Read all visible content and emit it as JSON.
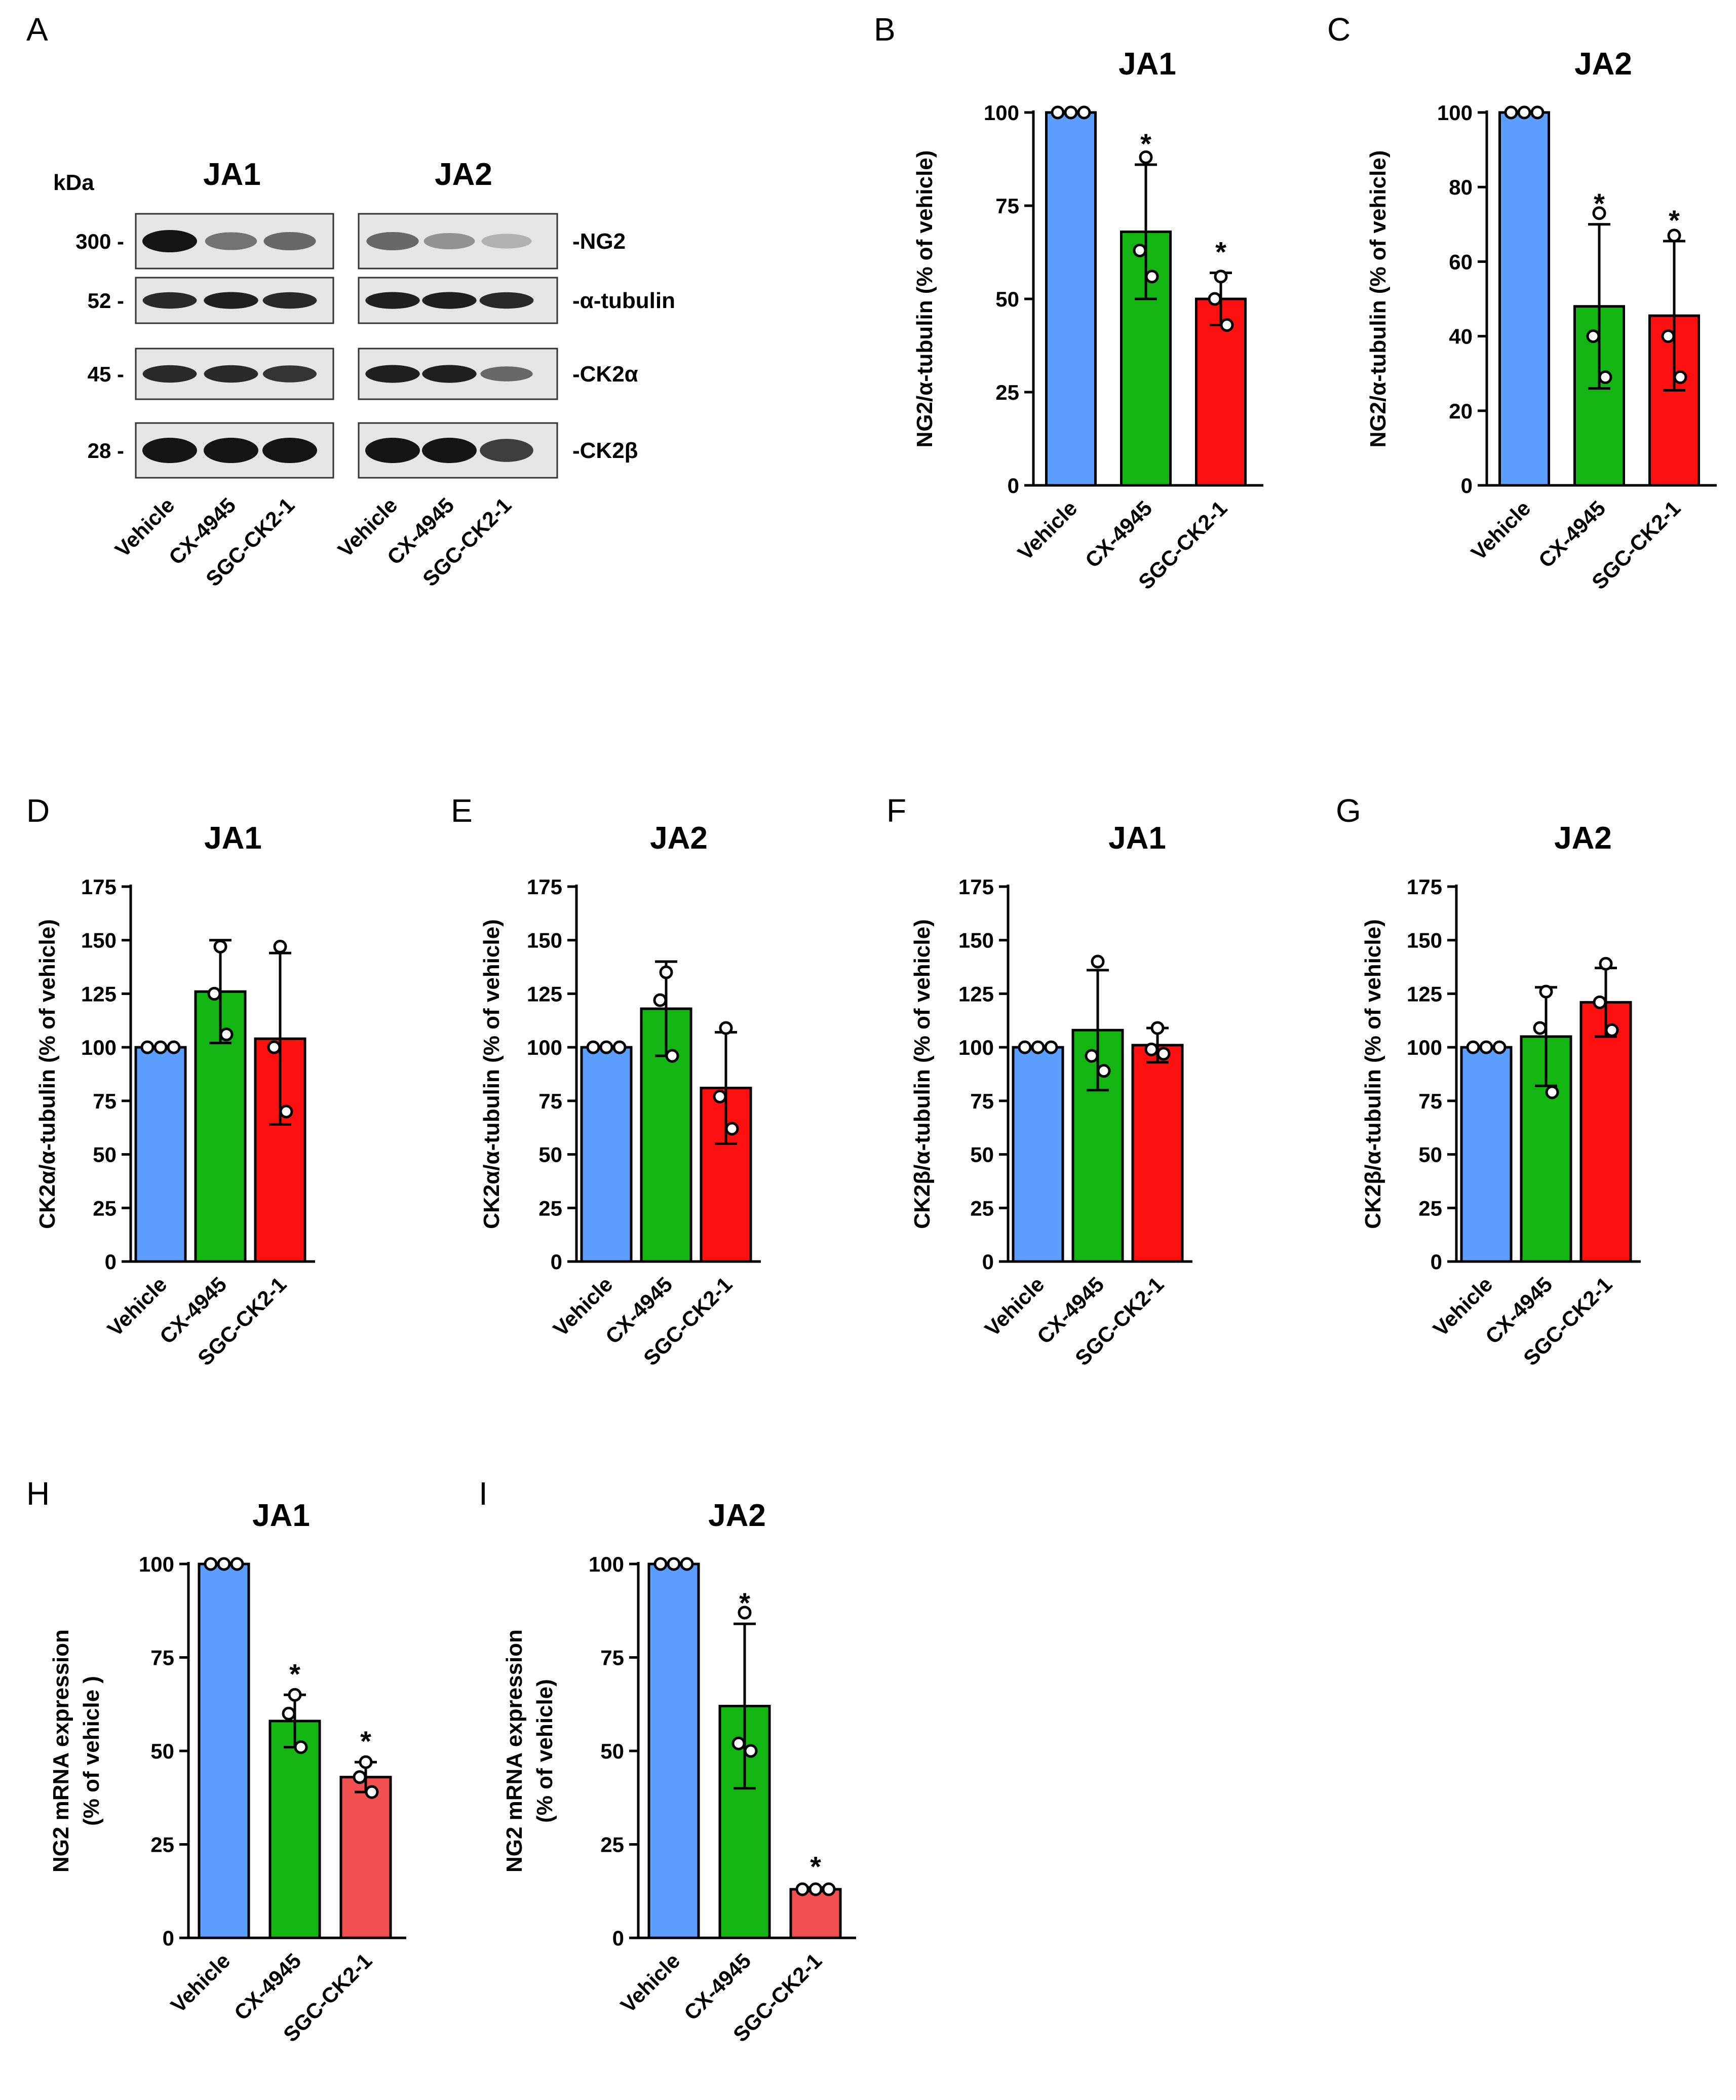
{
  "colors": {
    "vehicle": "#5b9eff",
    "cx4945": "#12b512",
    "sgc": "#ff1010",
    "sgc_light": "#f25050",
    "axis": "#000000"
  },
  "blot": {
    "panel_letter": "A",
    "kda_label": "kDa",
    "groups": [
      "JA1",
      "JA2"
    ],
    "markers": [
      "300 -",
      "52 -",
      "45 -",
      "28 -"
    ],
    "proteins": [
      "-NG2",
      "-α-tubulin",
      "-CK2α",
      "-CK2β"
    ],
    "lanes": [
      "Vehicle",
      "CX-4945",
      "SGC-CK2-1",
      "Vehicle",
      "CX-4945",
      "SGC-CK2-1"
    ]
  },
  "chart_data": [
    {
      "id": "B",
      "type": "bar",
      "panel_letter": "B",
      "title": "JA1",
      "ylabel": [
        "NG2/α-tubulin (% of vehicle)"
      ],
      "categories": [
        "Vehicle",
        "CX-4945",
        "SGC-CK2-1"
      ],
      "values": [
        100,
        68,
        50
      ],
      "errors": [
        0,
        18,
        7
      ],
      "points": [
        [
          100,
          100,
          100
        ],
        [
          88,
          63,
          56
        ],
        [
          56,
          50,
          43
        ]
      ],
      "significance": [
        "",
        "*",
        "*"
      ],
      "ylim": [
        0,
        100
      ],
      "yticks": [
        0,
        25,
        50,
        75,
        100
      ],
      "tick_labels": [
        "0",
        "25",
        "50",
        "75",
        "100"
      ]
    },
    {
      "id": "C",
      "type": "bar",
      "panel_letter": "C",
      "title": "JA2",
      "ylabel": [
        "NG2/α-tubulin (% of vehicle)"
      ],
      "categories": [
        "Vehicle",
        "CX-4945",
        "SGC-CK2-1"
      ],
      "values": [
        100,
        48,
        45.5
      ],
      "errors": [
        0,
        22,
        20
      ],
      "points": [
        [
          100,
          100,
          100
        ],
        [
          73,
          40,
          29
        ],
        [
          67,
          40,
          29
        ]
      ],
      "significance": [
        "",
        "*",
        "*"
      ],
      "ylim": [
        0,
        100
      ],
      "yticks": [
        0,
        20,
        40,
        60,
        80,
        100
      ],
      "tick_labels": [
        "0",
        "20",
        "40",
        "60",
        "80",
        "100"
      ]
    },
    {
      "id": "D",
      "type": "bar",
      "panel_letter": "D",
      "title": "JA1",
      "ylabel": [
        "CK2α/α-tubulin (% of vehicle)"
      ],
      "categories": [
        "Vehicle",
        "CX-4945",
        "SGC-CK2-1"
      ],
      "values": [
        100,
        126,
        104
      ],
      "errors": [
        0,
        24,
        40
      ],
      "points": [
        [
          100,
          100,
          100
        ],
        [
          147,
          125,
          106
        ],
        [
          147,
          100,
          70
        ]
      ],
      "significance": [
        "",
        "",
        ""
      ],
      "ylim": [
        0,
        175
      ],
      "yticks": [
        0,
        25,
        50,
        75,
        100,
        125,
        150,
        175
      ],
      "tick_labels": [
        "0",
        "25",
        "50",
        "75",
        "100",
        "125",
        "150",
        "175"
      ]
    },
    {
      "id": "E",
      "type": "bar",
      "panel_letter": "E",
      "title": "JA2",
      "ylabel": [
        "CK2α/α-tubulin (% of vehicle)"
      ],
      "categories": [
        "Vehicle",
        "CX-4945",
        "SGC-CK2-1"
      ],
      "values": [
        100,
        118,
        81
      ],
      "errors": [
        0,
        22,
        26
      ],
      "points": [
        [
          100,
          100,
          100
        ],
        [
          135,
          122,
          96
        ],
        [
          109,
          77,
          62
        ]
      ],
      "significance": [
        "",
        "",
        ""
      ],
      "ylim": [
        0,
        175
      ],
      "yticks": [
        0,
        25,
        50,
        75,
        100,
        125,
        150,
        175
      ],
      "tick_labels": [
        "0",
        "25",
        "50",
        "75",
        "100",
        "125",
        "150",
        "175"
      ]
    },
    {
      "id": "F",
      "type": "bar",
      "panel_letter": "F",
      "title": "JA1",
      "ylabel": [
        "CK2β/α-tubulin (% of vehicle)"
      ],
      "categories": [
        "Vehicle",
        "CX-4945",
        "SGC-CK2-1"
      ],
      "values": [
        100,
        108,
        101
      ],
      "errors": [
        0,
        28,
        8
      ],
      "points": [
        [
          100,
          100,
          100
        ],
        [
          140,
          96,
          89
        ],
        [
          109,
          99,
          97
        ]
      ],
      "significance": [
        "",
        "",
        ""
      ],
      "ylim": [
        0,
        175
      ],
      "yticks": [
        0,
        25,
        50,
        75,
        100,
        125,
        150,
        175
      ],
      "tick_labels": [
        "0",
        "25",
        "50",
        "75",
        "100",
        "125",
        "150",
        "175"
      ]
    },
    {
      "id": "G",
      "type": "bar",
      "panel_letter": "G",
      "title": "JA2",
      "ylabel": [
        "CK2β/α-tubulin (% of vehicle)"
      ],
      "categories": [
        "Vehicle",
        "CX-4945",
        "SGC-CK2-1"
      ],
      "values": [
        100,
        105,
        121
      ],
      "errors": [
        0,
        23,
        16
      ],
      "points": [
        [
          100,
          100,
          100
        ],
        [
          126,
          109,
          79
        ],
        [
          139,
          121,
          108
        ]
      ],
      "significance": [
        "",
        "",
        ""
      ],
      "ylim": [
        0,
        175
      ],
      "yticks": [
        0,
        25,
        50,
        75,
        100,
        125,
        150,
        175
      ],
      "tick_labels": [
        "0",
        "25",
        "50",
        "75",
        "100",
        "125",
        "150",
        "175"
      ]
    },
    {
      "id": "H",
      "type": "bar",
      "panel_letter": "H",
      "title": "JA1",
      "ylabel": [
        "NG2 mRNA expression",
        "(% of vehicle )"
      ],
      "categories": [
        "Vehicle",
        "CX-4945",
        "SGC-CK2-1"
      ],
      "values": [
        100,
        58,
        43
      ],
      "errors": [
        0,
        7,
        4
      ],
      "points": [
        [
          100,
          100,
          100
        ],
        [
          65,
          60,
          51
        ],
        [
          47,
          43,
          39
        ]
      ],
      "significance": [
        "",
        "*",
        "*"
      ],
      "ylim": [
        0,
        100
      ],
      "yticks": [
        0,
        25,
        50,
        75,
        100
      ],
      "tick_labels": [
        "0",
        "25",
        "50",
        "75",
        "100"
      ]
    },
    {
      "id": "I",
      "type": "bar",
      "panel_letter": "I",
      "title": "JA2",
      "ylabel": [
        "NG2 mRNA expression",
        "(% of vehicle)"
      ],
      "categories": [
        "Vehicle",
        "CX-4945",
        "SGC-CK2-1"
      ],
      "values": [
        100,
        62,
        13
      ],
      "errors": [
        0,
        22,
        0.5
      ],
      "points": [
        [
          100,
          100,
          100
        ],
        [
          87,
          52,
          50
        ],
        [
          13,
          13,
          13
        ]
      ],
      "significance": [
        "",
        "*",
        "*"
      ],
      "ylim": [
        0,
        100
      ],
      "yticks": [
        0,
        25,
        50,
        75,
        100
      ],
      "tick_labels": [
        "0",
        "25",
        "50",
        "75",
        "100"
      ]
    }
  ]
}
